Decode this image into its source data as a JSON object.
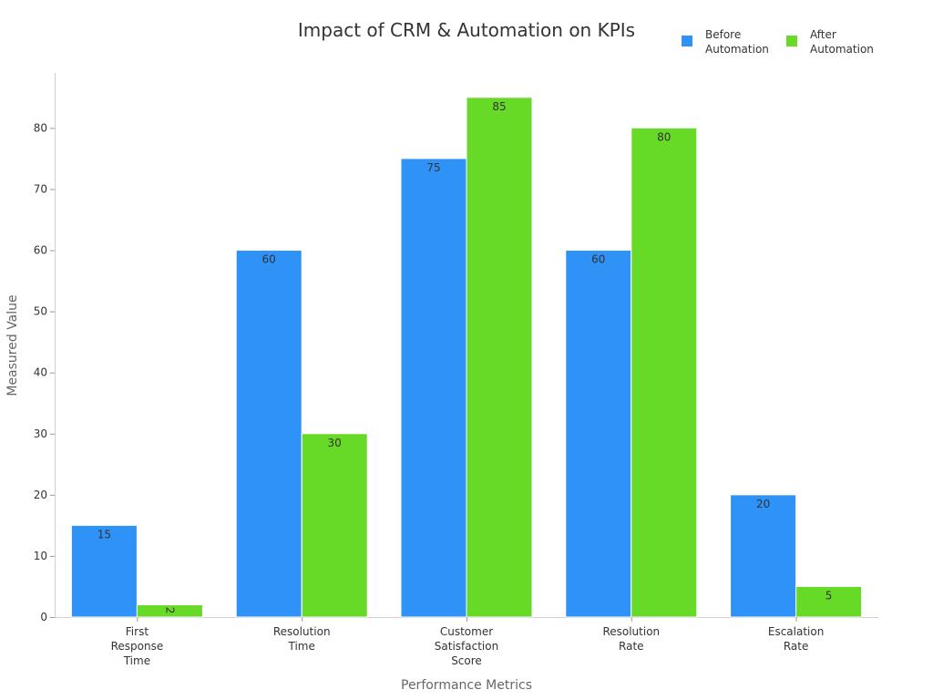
{
  "chart_data": {
    "type": "bar",
    "title": "Impact of CRM & Automation on KPIs",
    "xlabel": "Performance Metrics",
    "ylabel": "Measured Value",
    "categories": [
      [
        "First",
        "Response",
        "Time"
      ],
      [
        "Resolution",
        "Time"
      ],
      [
        "Customer",
        "Satisfaction",
        "Score"
      ],
      [
        "Resolution",
        "Rate"
      ],
      [
        "Escalation",
        "Rate"
      ]
    ],
    "series": [
      {
        "name": [
          "Before",
          "Automation"
        ],
        "color": "#2f92f7",
        "values": [
          15,
          60,
          75,
          60,
          20
        ]
      },
      {
        "name": [
          "After",
          "Automation"
        ],
        "color": "#66da26",
        "values": [
          2,
          30,
          85,
          80,
          5
        ]
      }
    ],
    "ylim": [
      0,
      89
    ],
    "yticks": [
      0,
      10,
      20,
      30,
      40,
      50,
      60,
      70,
      80
    ],
    "grid": false,
    "legend": "top-right"
  }
}
